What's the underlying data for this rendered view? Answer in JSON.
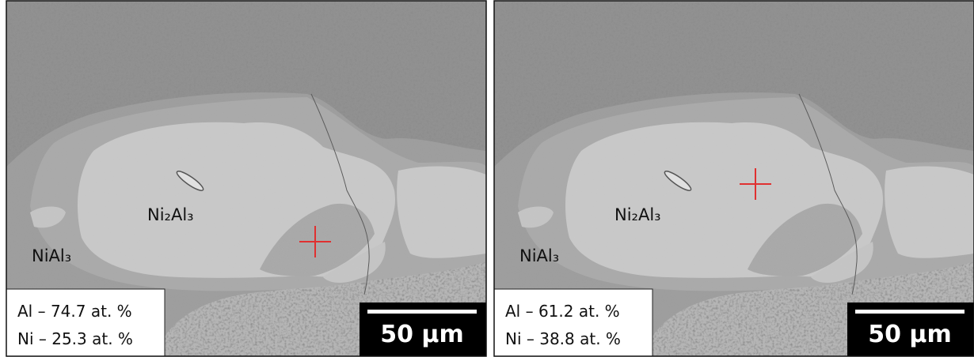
{
  "panels": [
    {
      "phases": [
        "Ni₂Al₃",
        "NiAl₃"
      ],
      "composition": [
        "Al – 74.7 at. %",
        "Ni – 25.3 at. %"
      ],
      "scale_bar": "50 µm"
    },
    {
      "phases": [
        "Ni₂Al₃",
        "NiAl₃"
      ],
      "composition": [
        "Al – 61.2 at. %",
        "Ni – 38.8 at. %"
      ],
      "scale_bar": "50 µm"
    }
  ]
}
